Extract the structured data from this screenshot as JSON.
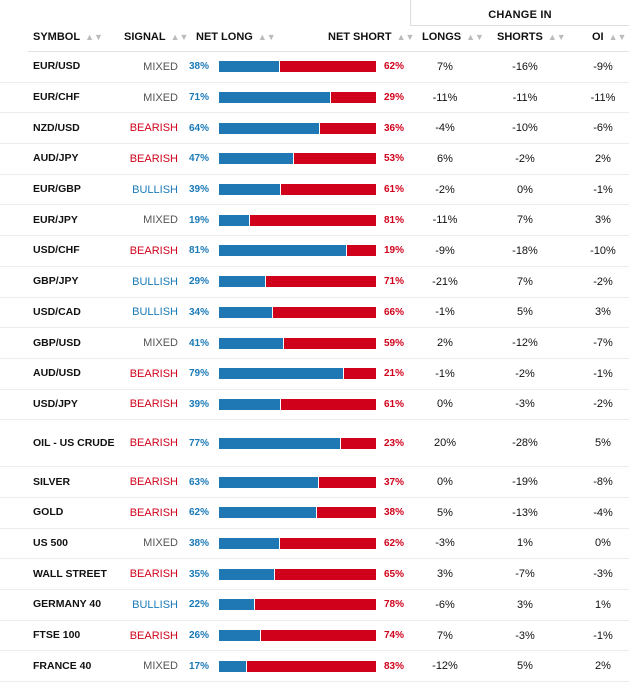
{
  "header": {
    "change_in": "CHANGE IN",
    "symbol": "SYMBOL",
    "signal": "SIGNAL",
    "net_long": "NET LONG",
    "net_short": "NET SHORT",
    "longs": "LONGS",
    "shorts": "SHORTS",
    "oi": "OI",
    "sort_glyph": "▲▼"
  },
  "colors": {
    "long": "#1f77b4",
    "short": "#d0021b",
    "bullish": "#1a7ab8",
    "bearish": "#d0021b",
    "mixed": "#555555"
  },
  "rows": [
    {
      "symbol": "EUR/USD",
      "signal": "MIXED",
      "net_long": "38%",
      "net_short": "62%",
      "longs": "7%",
      "shorts": "-16%",
      "oi": "-9%"
    },
    {
      "symbol": "EUR/CHF",
      "signal": "MIXED",
      "net_long": "71%",
      "net_short": "29%",
      "longs": "-11%",
      "shorts": "-11%",
      "oi": "-11%"
    },
    {
      "symbol": "NZD/USD",
      "signal": "BEARISH",
      "net_long": "64%",
      "net_short": "36%",
      "longs": "-4%",
      "shorts": "-10%",
      "oi": "-6%"
    },
    {
      "symbol": "AUD/JPY",
      "signal": "BEARISH",
      "net_long": "47%",
      "net_short": "53%",
      "longs": "6%",
      "shorts": "-2%",
      "oi": "2%"
    },
    {
      "symbol": "EUR/GBP",
      "signal": "BULLISH",
      "net_long": "39%",
      "net_short": "61%",
      "longs": "-2%",
      "shorts": "0%",
      "oi": "-1%"
    },
    {
      "symbol": "EUR/JPY",
      "signal": "MIXED",
      "net_long": "19%",
      "net_short": "81%",
      "longs": "-11%",
      "shorts": "7%",
      "oi": "3%"
    },
    {
      "symbol": "USD/CHF",
      "signal": "BEARISH",
      "net_long": "81%",
      "net_short": "19%",
      "longs": "-9%",
      "shorts": "-18%",
      "oi": "-10%"
    },
    {
      "symbol": "GBP/JPY",
      "signal": "BULLISH",
      "net_long": "29%",
      "net_short": "71%",
      "longs": "-21%",
      "shorts": "7%",
      "oi": "-2%"
    },
    {
      "symbol": "USD/CAD",
      "signal": "BULLISH",
      "net_long": "34%",
      "net_short": "66%",
      "longs": "-1%",
      "shorts": "5%",
      "oi": "3%"
    },
    {
      "symbol": "GBP/USD",
      "signal": "MIXED",
      "net_long": "41%",
      "net_short": "59%",
      "longs": "2%",
      "shorts": "-12%",
      "oi": "-7%"
    },
    {
      "symbol": "AUD/USD",
      "signal": "BEARISH",
      "net_long": "79%",
      "net_short": "21%",
      "longs": "-1%",
      "shorts": "-2%",
      "oi": "-1%"
    },
    {
      "symbol": "USD/JPY",
      "signal": "BEARISH",
      "net_long": "39%",
      "net_short": "61%",
      "longs": "0%",
      "shorts": "-3%",
      "oi": "-2%"
    },
    {
      "symbol": "OIL - US CRUDE",
      "signal": "BEARISH",
      "net_long": "77%",
      "net_short": "23%",
      "longs": "20%",
      "shorts": "-28%",
      "oi": "5%"
    },
    {
      "symbol": "SILVER",
      "signal": "BEARISH",
      "net_long": "63%",
      "net_short": "37%",
      "longs": "0%",
      "shorts": "-19%",
      "oi": "-8%"
    },
    {
      "symbol": "GOLD",
      "signal": "BEARISH",
      "net_long": "62%",
      "net_short": "38%",
      "longs": "5%",
      "shorts": "-13%",
      "oi": "-4%"
    },
    {
      "symbol": "US 500",
      "signal": "MIXED",
      "net_long": "38%",
      "net_short": "62%",
      "longs": "-3%",
      "shorts": "1%",
      "oi": "0%"
    },
    {
      "symbol": "WALL STREET",
      "signal": "BEARISH",
      "net_long": "35%",
      "net_short": "65%",
      "longs": "3%",
      "shorts": "-7%",
      "oi": "-3%"
    },
    {
      "symbol": "GERMANY 40",
      "signal": "BULLISH",
      "net_long": "22%",
      "net_short": "78%",
      "longs": "-6%",
      "shorts": "3%",
      "oi": "1%"
    },
    {
      "symbol": "FTSE 100",
      "signal": "BEARISH",
      "net_long": "26%",
      "net_short": "74%",
      "longs": "7%",
      "shorts": "-3%",
      "oi": "-1%"
    },
    {
      "symbol": "FRANCE 40",
      "signal": "MIXED",
      "net_long": "17%",
      "net_short": "83%",
      "longs": "-12%",
      "shorts": "5%",
      "oi": "2%"
    }
  ]
}
